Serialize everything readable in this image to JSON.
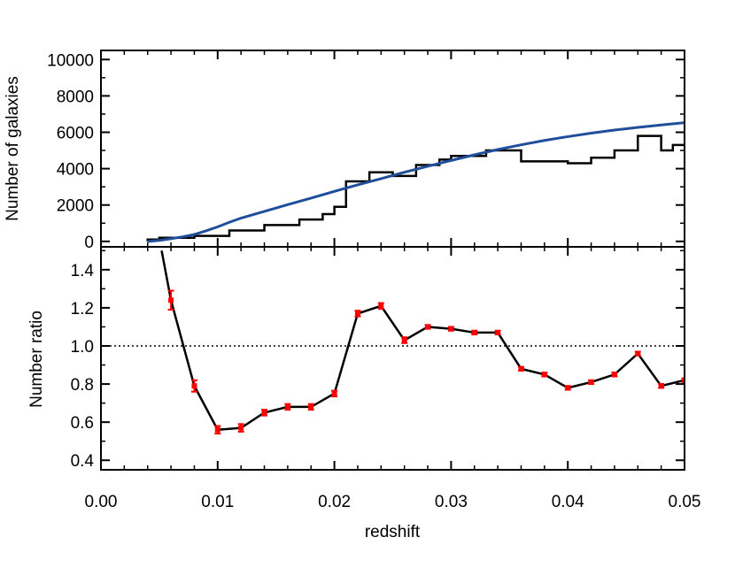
{
  "chart_data": [
    {
      "type": "line",
      "panel": "top",
      "ylabel": "Number of galaxies",
      "xlim": [
        0.0,
        0.05
      ],
      "ylim": [
        -300,
        10500
      ],
      "yticks": [
        0,
        2000,
        4000,
        6000,
        8000,
        10000
      ],
      "yticklabels": [
        "0",
        "2000",
        "4000",
        "6000",
        "8000",
        "10000"
      ],
      "grid": false,
      "series": [
        {
          "style": "histogram-step",
          "color": "#000000",
          "bin_edges": [
            0.004,
            0.005,
            0.006,
            0.008,
            0.009,
            0.01,
            0.011,
            0.013,
            0.014,
            0.015,
            0.017,
            0.019,
            0.02,
            0.021,
            0.022,
            0.023,
            0.024,
            0.025,
            0.026,
            0.027,
            0.028,
            0.029,
            0.03,
            0.032,
            0.033,
            0.034,
            0.036,
            0.038,
            0.039,
            0.04,
            0.042,
            0.043,
            0.044,
            0.045,
            0.046,
            0.047,
            0.048,
            0.049,
            0.05
          ],
          "counts": [
            100,
            200,
            200,
            300,
            300,
            300,
            600,
            600,
            900,
            900,
            1200,
            1500,
            1900,
            3300,
            3300,
            3800,
            3800,
            3600,
            3600,
            4200,
            4200,
            4500,
            4700,
            4700,
            5000,
            5000,
            4400,
            4400,
            4400,
            4300,
            4600,
            4600,
            5000,
            5000,
            5800,
            5800,
            5000,
            5300
          ]
        },
        {
          "style": "smooth-line",
          "color": "#1f4e9b",
          "x": [
            0.004,
            0.005,
            0.006,
            0.007,
            0.008,
            0.009,
            0.01,
            0.011,
            0.012,
            0.014,
            0.016,
            0.018,
            0.02,
            0.022,
            0.024,
            0.026,
            0.028,
            0.03,
            0.032,
            0.034,
            0.036,
            0.038,
            0.04,
            0.042,
            0.044,
            0.046,
            0.048,
            0.05
          ],
          "y": [
            0,
            50,
            150,
            250,
            380,
            580,
            800,
            1050,
            1280,
            1650,
            2020,
            2380,
            2750,
            3110,
            3450,
            3800,
            4130,
            4450,
            4760,
            5050,
            5310,
            5550,
            5760,
            5950,
            6120,
            6270,
            6400,
            6530
          ]
        }
      ]
    },
    {
      "type": "line",
      "panel": "bottom",
      "xlabel": "redshift",
      "ylabel": "Number ratio",
      "xlim": [
        0.0,
        0.05
      ],
      "ylim": [
        0.35,
        1.52
      ],
      "xticks": [
        0.0,
        0.01,
        0.02,
        0.03,
        0.04,
        0.05
      ],
      "xticklabels": [
        "0.00",
        "0.01",
        "0.02",
        "0.03",
        "0.04",
        "0.05"
      ],
      "yticks": [
        0.4,
        0.6,
        0.8,
        1.0,
        1.2,
        1.4
      ],
      "yticklabels": [
        "0.4",
        "0.6",
        "0.8",
        "1.0",
        "1.2",
        "1.4"
      ],
      "reference_line": {
        "y": 1.0,
        "style": "dotted"
      },
      "grid": false,
      "series": [
        {
          "color": "#000000",
          "marker_color": "#ff0000",
          "x": [
            0.0052,
            0.006,
            0.008,
            0.01,
            0.012,
            0.014,
            0.016,
            0.018,
            0.02,
            0.022,
            0.024,
            0.026,
            0.028,
            0.03,
            0.032,
            0.034,
            0.036,
            0.038,
            0.04,
            0.042,
            0.044,
            0.046,
            0.048,
            0.05
          ],
          "y": [
            1.5,
            1.24,
            0.79,
            0.56,
            0.57,
            0.65,
            0.68,
            0.68,
            0.75,
            1.17,
            1.21,
            1.03,
            1.1,
            1.09,
            1.07,
            1.07,
            0.88,
            0.85,
            0.78,
            0.81,
            0.85,
            0.96,
            0.79,
            0.82
          ],
          "err": [
            0,
            0.05,
            0.03,
            0.02,
            0.02,
            0.015,
            0.015,
            0.015,
            0.015,
            0.015,
            0.015,
            0.015,
            0.01,
            0.01,
            0.01,
            0.01,
            0.01,
            0.01,
            0.01,
            0.01,
            0.01,
            0.01,
            0.01,
            0.01
          ]
        }
      ]
    }
  ]
}
